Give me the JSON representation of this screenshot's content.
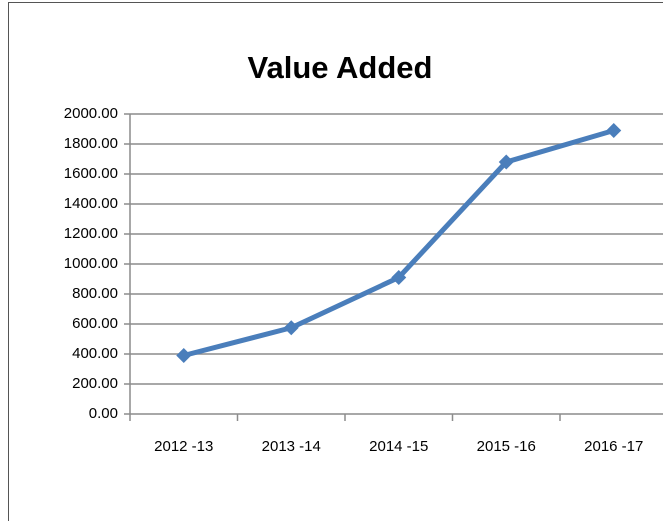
{
  "chart_data": {
    "type": "line",
    "title": "Value Added",
    "categories": [
      "2012 -13",
      "2013 -14",
      "2014 -15",
      "2015 -16",
      "2016 -17"
    ],
    "series": [
      {
        "name": "Value Added",
        "color": "#4a7ebb",
        "values": [
          390,
          575,
          910,
          1680,
          1890
        ]
      }
    ],
    "ylim": [
      0,
      2000
    ],
    "yticks": [
      {
        "value": 0,
        "label": "0.00"
      },
      {
        "value": 200,
        "label": "200.00"
      },
      {
        "value": 400,
        "label": "400.00"
      },
      {
        "value": 600,
        "label": "600.00"
      },
      {
        "value": 800,
        "label": "800.00"
      },
      {
        "value": 1000,
        "label": "1000.00"
      },
      {
        "value": 1200,
        "label": "1200.00"
      },
      {
        "value": 1400,
        "label": "1400.00"
      },
      {
        "value": 1600,
        "label": "1600.00"
      },
      {
        "value": 1800,
        "label": "1800.00"
      },
      {
        "value": 2000,
        "label": "2000.00"
      }
    ],
    "grid": true
  }
}
